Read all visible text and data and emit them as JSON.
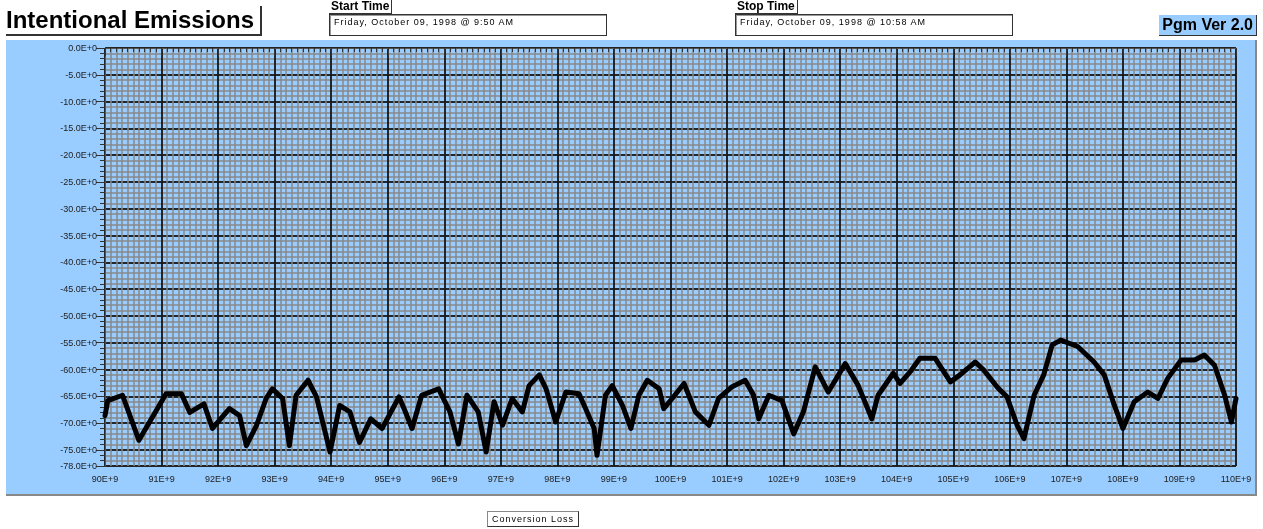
{
  "chart_data": {
    "type": "line",
    "title": "Intentional Emissions",
    "annotations": [
      "Start Time",
      "Friday, October 09, 1998 @ 9:50 AM",
      "Stop Time",
      "Friday, October 09, 1998 @ 10:58 AM",
      "Pgm Ver 2.0"
    ],
    "xlabel": "Conversion Loss",
    "series": [
      {
        "color": "#000000",
        "x": [
          90000000000.0,
          90050000000.0,
          90310000000.0,
          90600000000.0,
          91080000000.0,
          91350000000.0,
          91500000000.0,
          91750000000.0,
          91900000000.0,
          92200000000.0,
          92380000000.0,
          92500000000.0,
          92680000000.0,
          92850000000.0,
          92960000000.0,
          93140000000.0,
          93260000000.0,
          93380000000.0,
          93590000000.0,
          93740000000.0,
          93980000000.0,
          94150000000.0,
          94330000000.0,
          94500000000.0,
          94700000000.0,
          94900000000.0,
          95200000000.0,
          95300000000.0,
          95430000000.0,
          95600000000.0,
          95900000000.0,
          96100000000.0,
          96250000000.0,
          96400000000.0,
          96600000000.0,
          96740000000.0,
          96880000000.0,
          97030000000.0,
          97200000000.0,
          97380000000.0,
          97500000000.0,
          97680000000.0,
          97800000000.0,
          97970000000.0,
          98150000000.0,
          98380000000.0,
          98500000000.0,
          98650000000.0,
          98700000000.0,
          98850000000.0,
          98970000000.0,
          99150000000.0,
          99300000000.0,
          99440000000.0,
          99590000000.0,
          99800000000.0,
          99880000000.0,
          100030000000.0,
          100240000000.0,
          100440000000.0,
          100680000000.0,
          100850000000.0,
          101090000000.0,
          101320000000.0,
          101470000000.0,
          101560000000.0,
          101740000000.0,
          101970000000.0,
          102180000000.0,
          102350000000.0,
          102560000000.0,
          102790000000.0,
          103090000000.0,
          103320000000.0,
          103560000000.0,
          103670000000.0,
          103940000000.0,
          104060000000.0,
          104240000000.0,
          104410000000.0,
          104680000000.0,
          104950000000.0,
          105120000000.0,
          105390000000.0,
          105540000000.0,
          105780000000.0,
          105950000000.0,
          106130000000.0,
          106250000000.0,
          106430000000.0,
          106600000000.0,
          106750000000.0,
          106900000000.0,
          107200000000.0,
          107490000000.0,
          107670000000.0,
          107850000000.0,
          108000000000.0,
          108200000000.0,
          108440000000.0,
          108620000000.0,
          108790000000.0,
          109030000000.0,
          109270000000.0,
          109440000000.0,
          109620000000.0,
          109800000000.0,
          109920000000.0,
          110000000000.0
        ],
        "values": [
          -68.6,
          -65.8,
          -64.8,
          -73.2,
          -64.5,
          -64.5,
          -68,
          -66.4,
          -71,
          -67.3,
          -68.6,
          -74.2,
          -70.4,
          -65.4,
          -63.6,
          -65.4,
          -74.2,
          -64.8,
          -62,
          -65.1,
          -75.4,
          -66.7,
          -67.9,
          -73.6,
          -69.2,
          -71,
          -65.1,
          -67.6,
          -71,
          -64.8,
          -63.6,
          -67.9,
          -73.9,
          -64.8,
          -67.9,
          -75.4,
          -66,
          -70.4,
          -65.4,
          -67.9,
          -63,
          -61,
          -63.6,
          -69.8,
          -64.2,
          -64.5,
          -67.3,
          -71,
          -76,
          -64.8,
          -63,
          -66.7,
          -71,
          -64.8,
          -62,
          -63.6,
          -67.3,
          -65.4,
          -62.6,
          -67.9,
          -70.4,
          -65.4,
          -63.2,
          -62,
          -64.8,
          -69.2,
          -64.8,
          -65.8,
          -72,
          -67.9,
          -59.5,
          -64.2,
          -58.9,
          -63,
          -69.2,
          -64.8,
          -60.7,
          -62.6,
          -60.4,
          -57.9,
          -57.9,
          -62.3,
          -61,
          -58.6,
          -60.1,
          -63.3,
          -65.1,
          -70.4,
          -72.9,
          -64.8,
          -61,
          -55.4,
          -54.5,
          -55.7,
          -58.6,
          -61,
          -66.7,
          -71,
          -66,
          -64.2,
          -65.4,
          -61.7,
          -58.2,
          -58.2,
          -57.3,
          -59.2,
          -64.8,
          -69.8,
          -65.4
        ]
      }
    ],
    "xlim": [
      90000000000.0,
      110000000000.0
    ],
    "xticks": [
      {
        "value": 90000000000.0,
        "label": "90E+9"
      },
      {
        "value": 91000000000.0,
        "label": "91E+9"
      },
      {
        "value": 92000000000.0,
        "label": "92E+9"
      },
      {
        "value": 93000000000.0,
        "label": "93E+9"
      },
      {
        "value": 94000000000.0,
        "label": "94E+9"
      },
      {
        "value": 95000000000.0,
        "label": "95E+9"
      },
      {
        "value": 96000000000.0,
        "label": "96E+9"
      },
      {
        "value": 97000000000.0,
        "label": "97E+9"
      },
      {
        "value": 98000000000.0,
        "label": "98E+9"
      },
      {
        "value": 99000000000.0,
        "label": "99E+9"
      },
      {
        "value": 100000000000.0,
        "label": "100E+9"
      },
      {
        "value": 101000000000.0,
        "label": "101E+9"
      },
      {
        "value": 102000000000.0,
        "label": "102E+9"
      },
      {
        "value": 103000000000.0,
        "label": "103E+9"
      },
      {
        "value": 104000000000.0,
        "label": "104E+9"
      },
      {
        "value": 105000000000.0,
        "label": "105E+9"
      },
      {
        "value": 106000000000.0,
        "label": "106E+9"
      },
      {
        "value": 107000000000.0,
        "label": "107E+9"
      },
      {
        "value": 108000000000.0,
        "label": "108E+9"
      },
      {
        "value": 109000000000.0,
        "label": "109E+9"
      },
      {
        "value": 110000000000.0,
        "label": "110E+9"
      }
    ],
    "ylim": [
      -78,
      0
    ],
    "yticks": [
      {
        "value": 0,
        "label": "0.0E+0"
      },
      {
        "value": -5,
        "label": "-5.0E+0"
      },
      {
        "value": -10,
        "label": "-10.0E+0"
      },
      {
        "value": -15,
        "label": "-15.0E+0"
      },
      {
        "value": -20,
        "label": "-20.0E+0"
      },
      {
        "value": -25,
        "label": "-25.0E+0"
      },
      {
        "value": -30,
        "label": "-30.0E+0"
      },
      {
        "value": -35,
        "label": "-35.0E+0"
      },
      {
        "value": -40,
        "label": "-40.0E+0"
      },
      {
        "value": -45,
        "label": "-45.0E+0"
      },
      {
        "value": -50,
        "label": "-50.0E+0"
      },
      {
        "value": -55,
        "label": "-55.0E+0"
      },
      {
        "value": -60,
        "label": "-60.0E+0"
      },
      {
        "value": -65,
        "label": "-65.0E+0"
      },
      {
        "value": -70,
        "label": "-70.0E+0"
      },
      {
        "value": -75,
        "label": "-75.0E+0"
      },
      {
        "value": -78,
        "label": "-78.0E+0"
      }
    ],
    "grid": true,
    "marker": "none",
    "line_style": "solid"
  }
}
